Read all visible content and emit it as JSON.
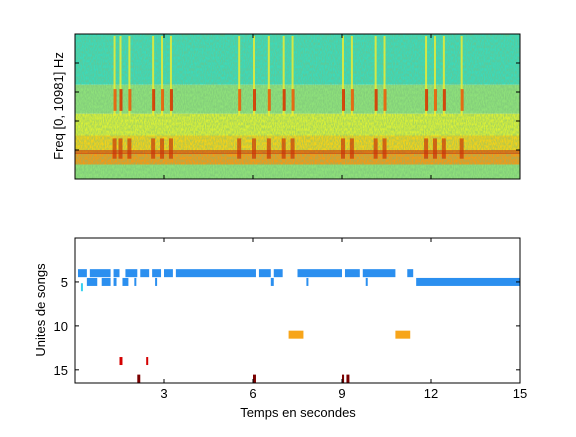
{
  "figure": {
    "top_panel": {
      "ylabel": "Freq [0, 10981] Hz",
      "colormap": [
        "#00007f",
        "#0000ff",
        "#00bfff",
        "#40e0b0",
        "#ffff00",
        "#ff8000",
        "#cc0000",
        "#800000"
      ]
    },
    "bottom_panel": {
      "ylabel": "Unites de songs",
      "xlabel": "Temps en secondes"
    }
  },
  "chart_data": [
    {
      "type": "heatmap",
      "ylabel": "Freq [0, 10981] Hz",
      "xlim": [
        0,
        15
      ],
      "ylim": [
        0,
        10981
      ],
      "grid": false
    },
    {
      "type": "scatter",
      "xlabel": "Temps en secondes",
      "ylabel": "Unites de songs",
      "xlim": [
        0,
        15
      ],
      "ylim": [
        16.5,
        0
      ],
      "y_reversed": true,
      "xticks": [
        3,
        6,
        9,
        12,
        15
      ],
      "yticks": [
        5,
        10,
        15
      ],
      "grid": false,
      "series": [
        {
          "unit": 4,
          "color": "#2b8fef",
          "segments": [
            [
              0.1,
              0.4
            ],
            [
              0.5,
              1.2
            ],
            [
              1.3,
              1.5
            ],
            [
              1.7,
              2.1
            ],
            [
              2.2,
              2.5
            ],
            [
              2.6,
              2.9
            ],
            [
              3.0,
              3.3
            ],
            [
              3.4,
              6.1
            ],
            [
              6.2,
              6.6
            ],
            [
              6.7,
              7.0
            ],
            [
              7.5,
              9.0
            ],
            [
              9.1,
              9.6
            ],
            [
              9.7,
              10.8
            ],
            [
              11.2,
              11.4
            ]
          ]
        },
        {
          "unit": 5,
          "color": "#2b8fef",
          "segments": [
            [
              0.4,
              0.75
            ],
            [
              0.9,
              1.2
            ],
            [
              1.3,
              1.4
            ],
            [
              1.6,
              1.8
            ],
            [
              2.0,
              2.05
            ],
            [
              2.7,
              2.75
            ],
            [
              6.6,
              6.7
            ],
            [
              7.8,
              7.85
            ],
            [
              9.8,
              9.85
            ],
            [
              11.5,
              15.0
            ]
          ]
        },
        {
          "unit": 5.6,
          "color": "#38d0ef",
          "segments": [
            [
              0.2,
              0.25
            ]
          ]
        },
        {
          "unit": 11,
          "color": "#f7a51a",
          "segments": [
            [
              7.2,
              7.7
            ],
            [
              10.8,
              11.3
            ]
          ]
        },
        {
          "unit": 14,
          "color": "#d40000",
          "segments": [
            [
              1.5,
              1.6
            ],
            [
              2.4,
              2.43
            ]
          ]
        },
        {
          "unit": 16,
          "color": "#7a0000",
          "segments": [
            [
              2.1,
              2.2
            ],
            [
              6.0,
              6.1
            ],
            [
              9.0,
              9.07
            ],
            [
              9.15,
              9.25
            ]
          ]
        }
      ]
    }
  ]
}
